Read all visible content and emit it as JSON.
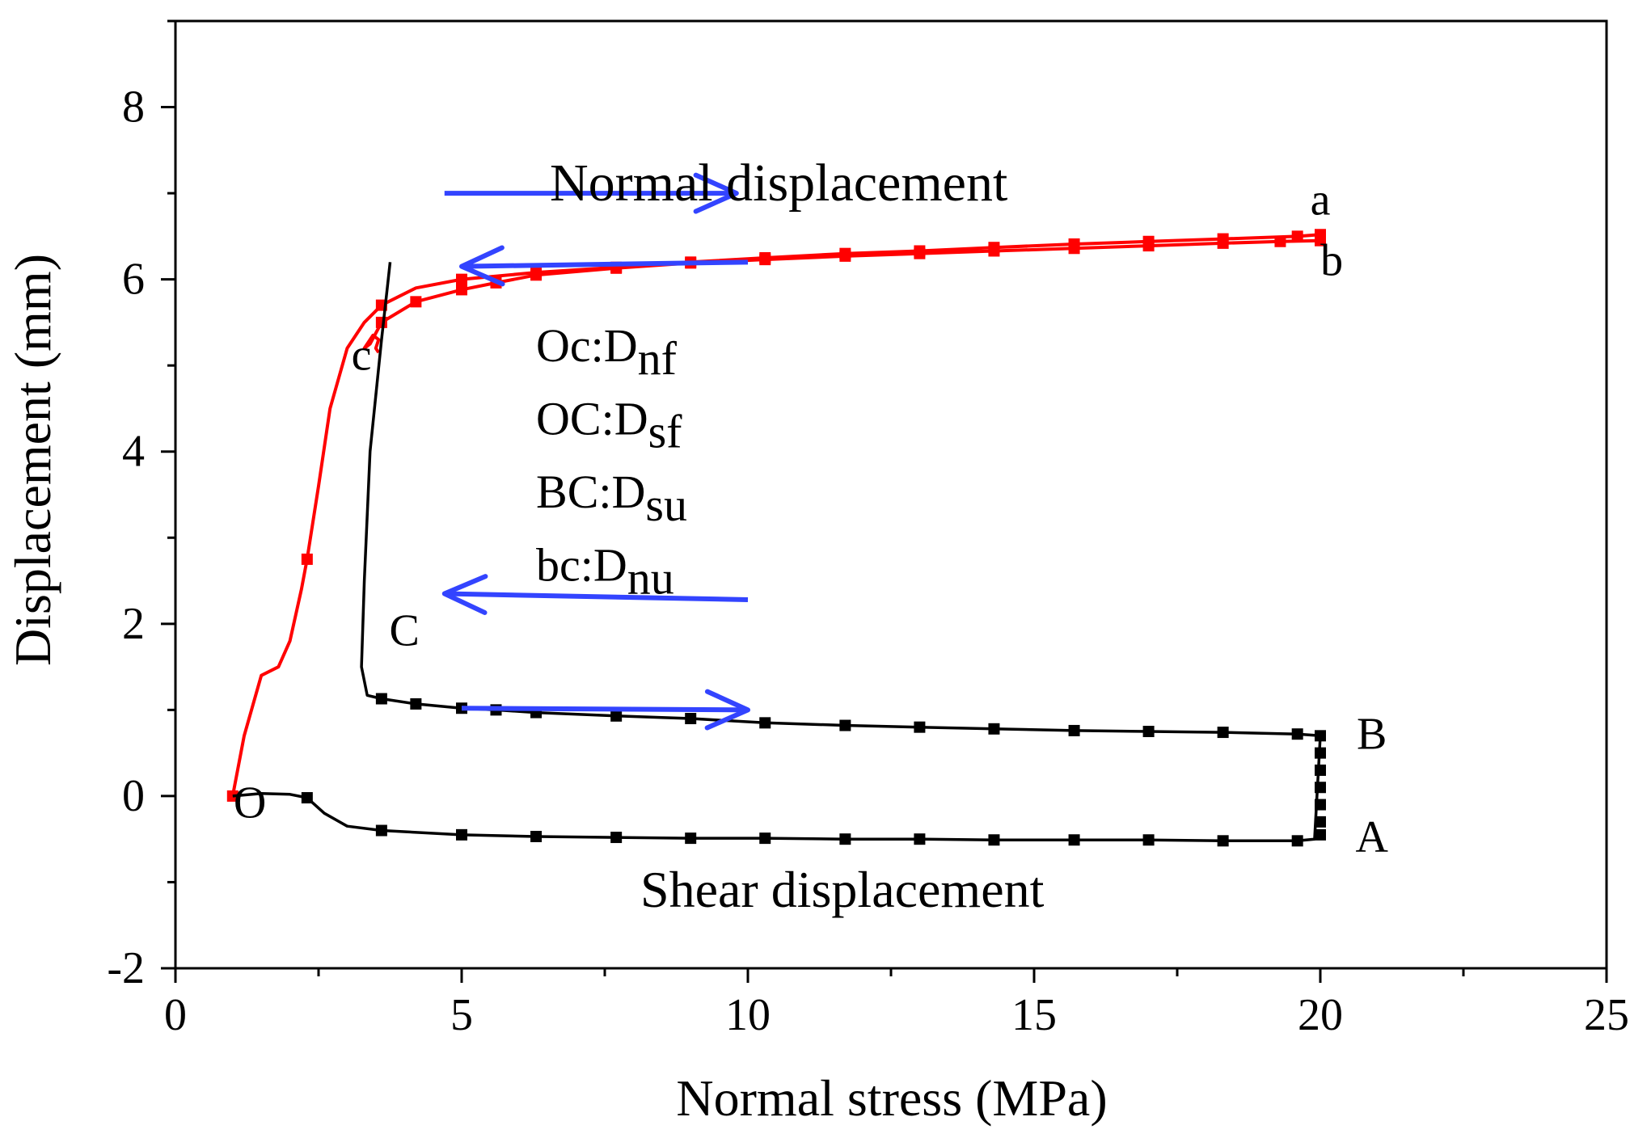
{
  "chart_data": {
    "type": "line",
    "xlabel": "Normal  stress (MPa)",
    "ylabel": "Displacement (mm)",
    "xlim": [
      0,
      25
    ],
    "ylim": [
      -2,
      9
    ],
    "x_ticks": [
      0,
      5,
      10,
      15,
      20,
      25
    ],
    "x_tick_labels": [
      "0",
      "5",
      "10",
      "15",
      "20",
      "25"
    ],
    "y_ticks": [
      -2,
      0,
      2,
      4,
      6,
      8
    ],
    "y_tick_labels": [
      "-2",
      "0",
      "2",
      "4",
      "6",
      "8"
    ],
    "grid": false,
    "colors": {
      "normal": "#ff0000",
      "shear": "#000000",
      "arrow": "#3344ff",
      "axis": "#000000"
    },
    "series": [
      {
        "name": "Normal displacement",
        "color": "#ff0000",
        "label": "Normal displacement",
        "path": [
          [
            1.0,
            0.0
          ],
          [
            1.2,
            0.7
          ],
          [
            1.5,
            1.4
          ],
          [
            1.8,
            1.5
          ],
          [
            2.0,
            1.8
          ],
          [
            2.2,
            2.4
          ],
          [
            2.3,
            2.75
          ],
          [
            2.5,
            3.6
          ],
          [
            2.7,
            4.5
          ],
          [
            3.0,
            5.2
          ],
          [
            3.3,
            5.5
          ],
          [
            3.6,
            5.7
          ],
          [
            4.2,
            5.9
          ],
          [
            5.0,
            6.0
          ],
          [
            6.3,
            6.08
          ],
          [
            7.7,
            6.14
          ],
          [
            9.0,
            6.2
          ],
          [
            10.3,
            6.25
          ],
          [
            11.7,
            6.3
          ],
          [
            13.0,
            6.33
          ],
          [
            14.3,
            6.37
          ],
          [
            15.7,
            6.41
          ],
          [
            17.0,
            6.44
          ],
          [
            18.3,
            6.47
          ],
          [
            19.6,
            6.5
          ],
          [
            20.0,
            6.52
          ],
          [
            20.0,
            6.45
          ],
          [
            19.3,
            6.44
          ],
          [
            18.3,
            6.42
          ],
          [
            17.0,
            6.39
          ],
          [
            15.7,
            6.36
          ],
          [
            14.3,
            6.33
          ],
          [
            13.0,
            6.3
          ],
          [
            11.7,
            6.27
          ],
          [
            10.3,
            6.23
          ],
          [
            9.0,
            6.19
          ],
          [
            7.7,
            6.13
          ],
          [
            6.3,
            6.05
          ],
          [
            5.6,
            5.96
          ],
          [
            5.0,
            5.88
          ],
          [
            4.2,
            5.74
          ],
          [
            3.6,
            5.5
          ],
          [
            3.4,
            5.25
          ],
          [
            3.3,
            5.2
          ],
          [
            3.45,
            5.35
          ],
          [
            3.55,
            5.3
          ],
          [
            3.5,
            5.2
          ],
          [
            3.55,
            5.15
          ]
        ],
        "markers": [
          [
            1.0,
            0.0
          ],
          [
            2.3,
            2.75
          ],
          [
            3.6,
            5.7
          ],
          [
            5.0,
            6.0
          ],
          [
            6.3,
            6.08
          ],
          [
            7.7,
            6.14
          ],
          [
            9.0,
            6.2
          ],
          [
            10.3,
            6.25
          ],
          [
            11.7,
            6.3
          ],
          [
            13.0,
            6.33
          ],
          [
            14.3,
            6.37
          ],
          [
            15.7,
            6.41
          ],
          [
            17.0,
            6.44
          ],
          [
            18.3,
            6.47
          ],
          [
            19.6,
            6.5
          ],
          [
            20.0,
            6.52
          ],
          [
            20.0,
            6.45
          ],
          [
            19.3,
            6.44
          ],
          [
            18.3,
            6.42
          ],
          [
            17.0,
            6.39
          ],
          [
            15.7,
            6.36
          ],
          [
            14.3,
            6.33
          ],
          [
            13.0,
            6.3
          ],
          [
            11.7,
            6.27
          ],
          [
            10.3,
            6.23
          ],
          [
            9.0,
            6.19
          ],
          [
            7.7,
            6.13
          ],
          [
            6.3,
            6.05
          ],
          [
            5.6,
            5.96
          ],
          [
            5.0,
            5.88
          ],
          [
            4.2,
            5.74
          ],
          [
            3.6,
            5.5
          ]
        ]
      },
      {
        "name": "Shear displacement",
        "color": "#000000",
        "label": "Shear displacement",
        "path": [
          [
            1.0,
            0.0
          ],
          [
            1.5,
            0.03
          ],
          [
            2.0,
            0.02
          ],
          [
            2.3,
            -0.02
          ],
          [
            2.6,
            -0.2
          ],
          [
            3.0,
            -0.35
          ],
          [
            3.6,
            -0.4
          ],
          [
            5.0,
            -0.45
          ],
          [
            6.3,
            -0.47
          ],
          [
            7.7,
            -0.48
          ],
          [
            9.0,
            -0.49
          ],
          [
            10.3,
            -0.49
          ],
          [
            11.7,
            -0.5
          ],
          [
            13.0,
            -0.5
          ],
          [
            14.3,
            -0.51
          ],
          [
            15.7,
            -0.51
          ],
          [
            17.0,
            -0.51
          ],
          [
            18.3,
            -0.52
          ],
          [
            19.6,
            -0.52
          ],
          [
            19.9,
            -0.5
          ],
          [
            20.0,
            0.7
          ],
          [
            19.6,
            0.72
          ],
          [
            18.3,
            0.74
          ],
          [
            17.0,
            0.75
          ],
          [
            15.7,
            0.76
          ],
          [
            14.3,
            0.78
          ],
          [
            13.0,
            0.8
          ],
          [
            11.7,
            0.82
          ],
          [
            10.3,
            0.85
          ],
          [
            9.0,
            0.9
          ],
          [
            7.7,
            0.93
          ],
          [
            6.3,
            0.97
          ],
          [
            5.6,
            1.0
          ],
          [
            5.0,
            1.02
          ],
          [
            4.2,
            1.07
          ],
          [
            3.6,
            1.13
          ],
          [
            3.35,
            1.17
          ],
          [
            3.25,
            1.5
          ],
          [
            3.3,
            2.5
          ],
          [
            3.4,
            4.0
          ],
          [
            3.6,
            5.3
          ],
          [
            3.7,
            5.9
          ],
          [
            3.75,
            6.2
          ]
        ],
        "markers": [
          [
            2.3,
            -0.02
          ],
          [
            3.6,
            -0.4
          ],
          [
            5.0,
            -0.45
          ],
          [
            6.3,
            -0.47
          ],
          [
            7.7,
            -0.48
          ],
          [
            9.0,
            -0.49
          ],
          [
            10.3,
            -0.49
          ],
          [
            11.7,
            -0.5
          ],
          [
            13.0,
            -0.5
          ],
          [
            14.3,
            -0.51
          ],
          [
            15.7,
            -0.51
          ],
          [
            17.0,
            -0.51
          ],
          [
            18.3,
            -0.52
          ],
          [
            19.6,
            -0.52
          ],
          [
            20.0,
            -0.45
          ],
          [
            20.0,
            -0.3
          ],
          [
            20.0,
            -0.1
          ],
          [
            20.0,
            0.1
          ],
          [
            20.0,
            0.3
          ],
          [
            20.0,
            0.5
          ],
          [
            20.0,
            0.7
          ],
          [
            19.6,
            0.72
          ],
          [
            18.3,
            0.74
          ],
          [
            17.0,
            0.75
          ],
          [
            15.7,
            0.76
          ],
          [
            14.3,
            0.78
          ],
          [
            13.0,
            0.8
          ],
          [
            11.7,
            0.82
          ],
          [
            10.3,
            0.85
          ],
          [
            9.0,
            0.9
          ],
          [
            7.7,
            0.93
          ],
          [
            6.3,
            0.97
          ],
          [
            5.6,
            1.0
          ],
          [
            5.0,
            1.02
          ],
          [
            4.2,
            1.07
          ],
          [
            3.6,
            1.13
          ]
        ]
      }
    ],
    "point_labels": [
      {
        "text": "O",
        "x": 1.3,
        "y": -0.25
      },
      {
        "text": "A",
        "x": 20.9,
        "y": -0.65
      },
      {
        "text": "B",
        "x": 20.9,
        "y": 0.55
      },
      {
        "text": "C",
        "x": 4.0,
        "y": 1.75
      },
      {
        "text": "a",
        "x": 20.0,
        "y": 6.75
      },
      {
        "text": "b",
        "x": 20.2,
        "y": 6.05
      },
      {
        "text": "c",
        "x": 3.25,
        "y": 4.95
      }
    ],
    "arrows": [
      {
        "from": [
          4.7,
          7.0
        ],
        "to": [
          9.8,
          7.0
        ]
      },
      {
        "from": [
          10.0,
          6.2
        ],
        "to": [
          5.0,
          6.15
        ]
      },
      {
        "from": [
          10.0,
          2.28
        ],
        "to": [
          4.7,
          2.35
        ]
      },
      {
        "from": [
          5.0,
          1.02
        ],
        "to": [
          10.0,
          1.0
        ]
      }
    ],
    "annotations": [
      {
        "base": "Oc:D",
        "sub": "nf",
        "x": 6.3,
        "y": 5.05
      },
      {
        "base": "OC:D",
        "sub": "sf",
        "x": 6.3,
        "y": 4.2
      },
      {
        "base": "BC:D",
        "sub": "su",
        "x": 6.3,
        "y": 3.35
      },
      {
        "base": "bc:D",
        "sub": "nu",
        "x": 6.3,
        "y": 2.5
      }
    ]
  }
}
